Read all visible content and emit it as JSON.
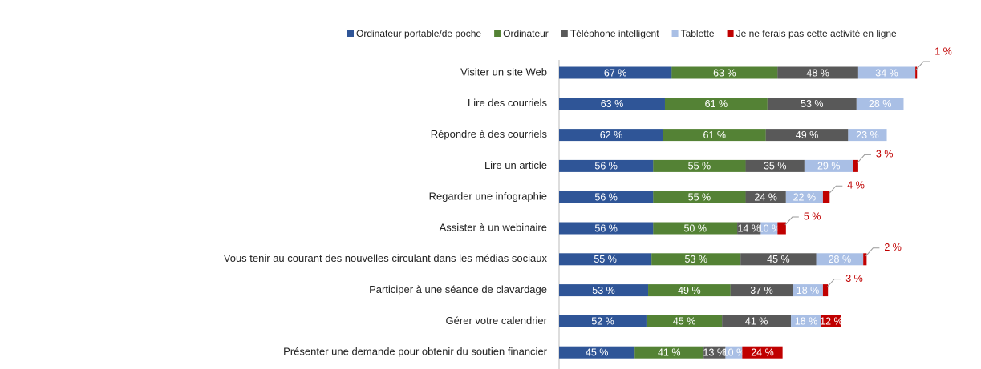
{
  "chart_data": {
    "type": "stacked-bar-horizontal",
    "categories": [
      "Visiter un site Web",
      "Lire des courriels",
      "Répondre à des courriels",
      "Lire un article",
      "Regarder une infographie",
      "Assister à un webinaire",
      "Vous tenir au courant des nouvelles circulant dans les médias sociaux",
      "Participer à une séance de clavardage",
      "Gérer votre calendrier",
      "Présenter une demande pour obtenir du soutien financier"
    ],
    "series": [
      {
        "name": "Ordinateur portable/de poche",
        "color": "#2f5597",
        "values": [
          67,
          63,
          62,
          56,
          56,
          56,
          55,
          53,
          52,
          45
        ],
        "value_labels": [
          "67 %",
          "63 %",
          "62 %",
          "56 %",
          "56 %",
          "56 %",
          "55 %",
          "53 %",
          "52 %",
          "45 %"
        ]
      },
      {
        "name": "Ordinateur",
        "color": "#548235",
        "values": [
          63,
          61,
          61,
          55,
          55,
          50,
          53,
          49,
          45,
          41
        ],
        "value_labels": [
          "63 %",
          "61 %",
          "61 %",
          "55 %",
          "55 %",
          "50 %",
          "53 %",
          "49 %",
          "45 %",
          "41 %"
        ]
      },
      {
        "name": "Téléphone intelligent",
        "color": "#595959",
        "values": [
          48,
          53,
          49,
          35,
          24,
          14,
          45,
          37,
          41,
          13
        ],
        "value_labels": [
          "48 %",
          "53 %",
          "49 %",
          "35 %",
          "24 %",
          "14 %",
          "45 %",
          "37 %",
          "41 %",
          "13 %"
        ]
      },
      {
        "name": "Tablette",
        "color": "#a9bfe5",
        "values": [
          34,
          28,
          23,
          29,
          22,
          10,
          28,
          18,
          18,
          10
        ],
        "value_labels": [
          "34 %",
          "28 %",
          "23 %",
          "29 %",
          "22 %",
          "10 %",
          "28 %",
          "18 %",
          "18 %",
          "10 %"
        ]
      },
      {
        "name": "Je ne ferais pas cette activité en ligne",
        "color": "#c00000",
        "values": [
          1,
          null,
          null,
          3,
          4,
          5,
          2,
          3,
          12,
          24
        ],
        "value_labels": [
          "1 %",
          null,
          null,
          "3 %",
          "4 %",
          "5 %",
          "2 %",
          "3 %",
          "12 %",
          "24 %"
        ]
      }
    ]
  }
}
